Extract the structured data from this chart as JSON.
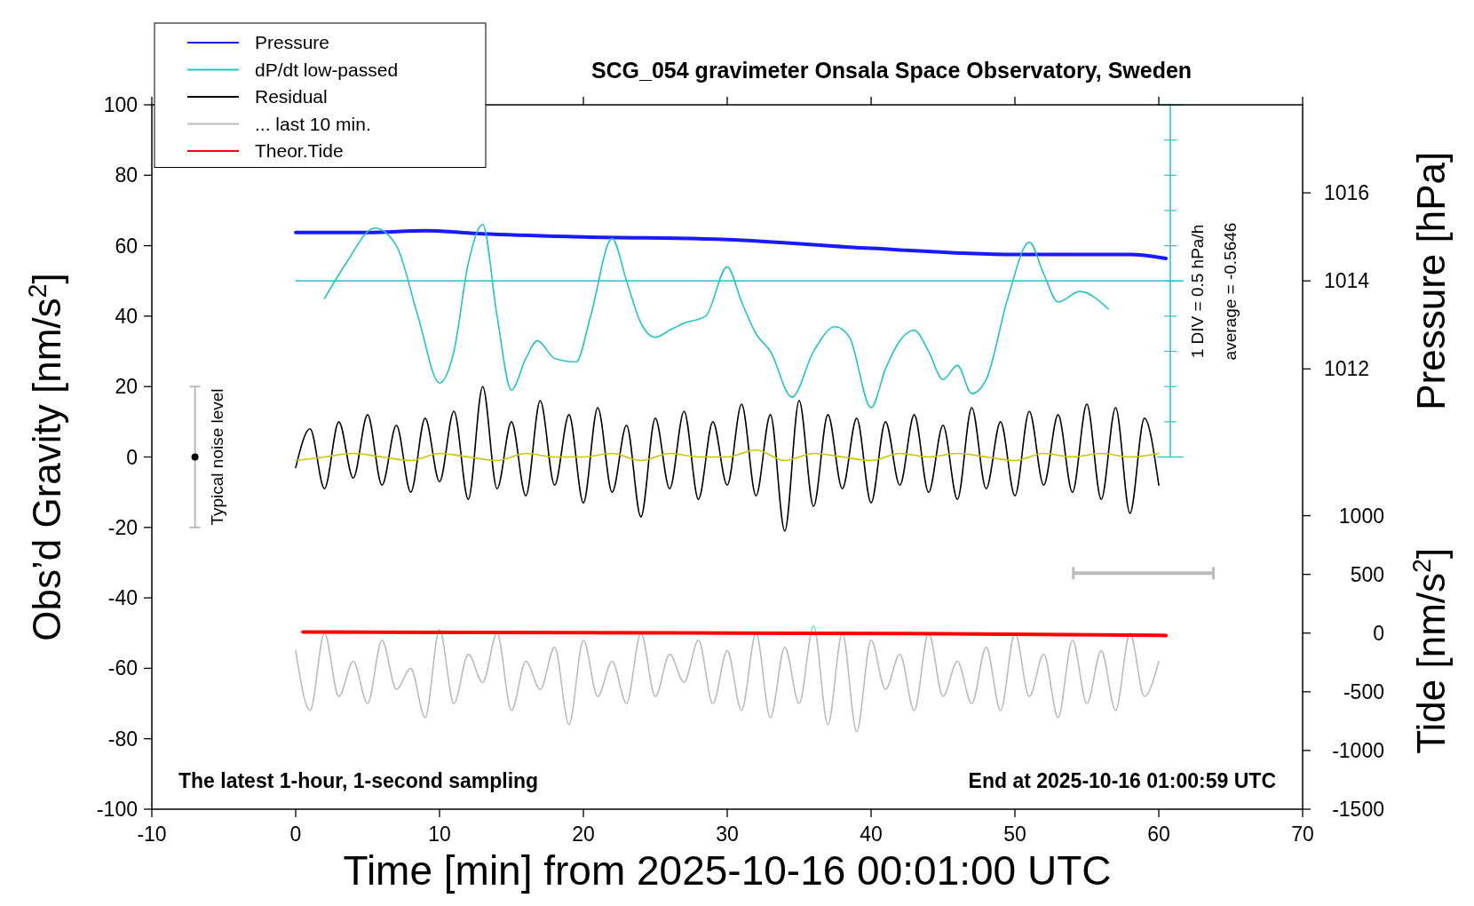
{
  "chart_data": {
    "type": "line",
    "title": "SCG_054 gravimeter Onsala Space Observatory, Sweden",
    "xlabel": "Time [min] from 2025-10-16 00:01:00 UTC",
    "ylabel": "Obs’d Gravity [nm/s$^{2}$]",
    "y2label": "Pressure [hPa]",
    "y3label": "Tide [nm/s$^{2}$]",
    "xlim": [
      -10,
      70
    ],
    "xticks": [
      -10,
      0,
      10,
      20,
      30,
      40,
      50,
      60,
      70
    ],
    "ylim": [
      -100,
      100
    ],
    "yticks": [
      -100,
      -80,
      -60,
      -40,
      -20,
      0,
      20,
      40,
      60,
      80,
      100
    ],
    "y2lim": [
      1002,
      1018
    ],
    "y2ticks": [
      1012,
      1014,
      1016
    ],
    "y3lim": [
      -1500,
      4500
    ],
    "y3ticks": [
      -1500,
      -1000,
      -500,
      0,
      500,
      1000
    ],
    "legend": "top left",
    "ref_lines": [
      {
        "axis": "y",
        "value": 50,
        "color": "#22c4c4"
      }
    ],
    "annotations": [
      "The latest 1-hour, 1-second sampling",
      "End at 2025-10-16 01:00:59 UTC",
      "1 DIV = 0.5 hPa/h",
      "average = -0.5646",
      "Typical noise level"
    ],
    "series": [
      {
        "name": "Pressure",
        "color": "#1a1aff",
        "axis": "y2",
        "x": [
          0,
          5,
          9,
          13,
          20,
          30,
          40,
          50,
          55,
          58,
          60.5
        ],
        "values": [
          1015.1,
          1015.1,
          1015.14,
          1015.07,
          1015.0,
          1014.94,
          1014.74,
          1014.6,
          1014.6,
          1014.6,
          1014.51
        ]
      },
      {
        "name": "dP/dt low-passed",
        "color": "#22c4c4",
        "x": [
          2,
          3.5,
          5.5,
          7,
          8.5,
          10,
          11,
          12,
          13,
          14,
          15,
          16,
          16.8,
          18,
          19.5,
          20.5,
          22,
          23,
          24,
          25,
          26,
          27,
          28.5,
          30,
          31,
          32,
          33,
          34.5,
          36,
          37.5,
          38.5,
          40,
          41,
          42,
          43,
          44,
          45,
          46,
          47,
          48,
          49.5,
          51,
          52,
          53,
          54.5,
          56.5
        ],
        "values": [
          45,
          55,
          65,
          60,
          40,
          21,
          30,
          55,
          66,
          40,
          19,
          28,
          33,
          28,
          27,
          40,
          62,
          50,
          38,
          34,
          36,
          38,
          40,
          54,
          44,
          35,
          30,
          17,
          30,
          37,
          34,
          14,
          25,
          33,
          36,
          30,
          22,
          26,
          18,
          22,
          45,
          61,
          52,
          44,
          47,
          42
        ]
      },
      {
        "name": "Residual",
        "color": "#000000",
        "x": [
          0,
          1,
          2,
          3,
          4,
          5,
          6,
          7,
          8,
          9,
          10,
          11,
          12,
          13,
          14,
          15,
          16,
          17,
          18,
          19,
          20,
          21,
          22,
          23,
          24,
          25,
          26,
          27,
          28,
          29,
          30,
          31,
          32,
          33,
          34,
          35,
          36,
          37,
          38,
          39,
          40,
          41,
          42,
          43,
          44,
          45,
          46,
          47,
          48,
          49,
          50,
          51,
          52,
          53,
          54,
          55,
          56,
          57,
          58,
          59,
          60
        ],
        "values": [
          -3,
          8,
          -9,
          10,
          -6,
          12,
          -8,
          9,
          -10,
          11,
          -7,
          13,
          -12,
          20,
          -9,
          10,
          -11,
          16,
          -8,
          12,
          -13,
          14,
          -10,
          9,
          -17,
          11,
          -9,
          13,
          -12,
          10,
          -8,
          15,
          -11,
          12,
          -21,
          16,
          -14,
          12,
          -9,
          11,
          -13,
          10,
          -8,
          12,
          -10,
          9,
          -12,
          14,
          -9,
          10,
          -11,
          13,
          -8,
          12,
          -10,
          15,
          -12,
          14,
          -16,
          11,
          -8
        ]
      },
      {
        "color": "#c8c800",
        "x": [
          0,
          2,
          4,
          6,
          8,
          10,
          12,
          14,
          16,
          18,
          20,
          22,
          24,
          26,
          28,
          30,
          32,
          34,
          36,
          38,
          40,
          42,
          44,
          46,
          48,
          50,
          52,
          54,
          56,
          58,
          60
        ],
        "values": [
          -1,
          0,
          1,
          0,
          -1,
          1,
          0,
          -1,
          1,
          0,
          0,
          1,
          -1,
          1,
          0,
          0,
          2,
          -1,
          1,
          0,
          -1,
          1,
          0,
          1,
          0,
          -1,
          1,
          0,
          1,
          0,
          1
        ]
      },
      {
        "name": "... last 10 min.",
        "color": "#bbbbbb",
        "x": [
          0,
          1,
          2,
          3,
          4,
          5,
          6,
          7,
          8,
          9,
          10,
          11,
          12,
          13,
          14,
          15,
          16,
          17,
          18,
          19,
          20,
          21,
          22,
          23,
          24,
          25,
          26,
          27,
          28,
          29,
          30,
          31,
          32,
          33,
          34,
          35,
          36,
          37,
          38,
          39,
          40,
          41,
          42,
          43,
          44,
          45,
          46,
          47,
          48,
          49,
          50,
          51,
          52,
          53,
          54,
          55,
          56,
          57,
          58,
          59,
          60
        ],
        "values": [
          -55,
          -72,
          -50,
          -68,
          -58,
          -70,
          -52,
          -66,
          -60,
          -74,
          -49,
          -70,
          -56,
          -64,
          -50,
          -72,
          -58,
          -66,
          -54,
          -76,
          -52,
          -68,
          -58,
          -70,
          -50,
          -68,
          -56,
          -64,
          -52,
          -70,
          -55,
          -72,
          -50,
          -74,
          -54,
          -70,
          -48,
          -76,
          -50,
          -78,
          -52,
          -66,
          -56,
          -72,
          -50,
          -68,
          -58,
          -70,
          -54,
          -72,
          -50,
          -68,
          -56,
          -74,
          -52,
          -70,
          -55,
          -72,
          -50,
          -68,
          -58
        ]
      },
      {
        "name": "Theor.Tide",
        "color": "#ff0000",
        "axis": "y3",
        "x": [
          0.5,
          30,
          45,
          60.5
        ],
        "values": [
          10,
          0,
          -5,
          -20
        ]
      },
      {
        "type": "scatter",
        "color": "#000000",
        "x": [
          -7
        ],
        "values": [
          0
        ],
        "errors": [
          20
        ]
      }
    ]
  }
}
